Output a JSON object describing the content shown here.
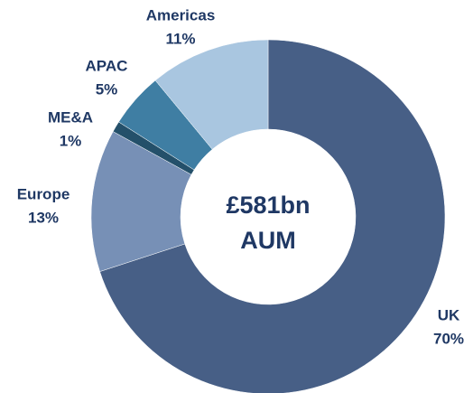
{
  "chart_data": {
    "type": "donut",
    "center_text": [
      "£581bn",
      "AUM"
    ],
    "categories": [
      "UK",
      "Europe",
      "ME&A",
      "APAC",
      "Americas"
    ],
    "values": [
      70,
      13,
      1,
      5,
      11
    ],
    "value_labels": [
      "70%",
      "13%",
      "1%",
      "5%",
      "11%"
    ],
    "colors": [
      "#475f86",
      "#7790b6",
      "#24506a",
      "#3f7ea3",
      "#a9c6e0"
    ]
  }
}
